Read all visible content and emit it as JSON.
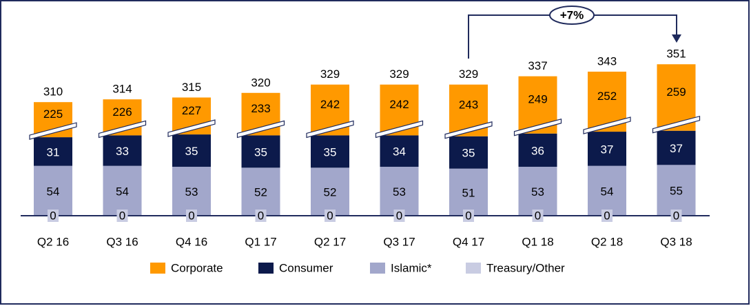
{
  "chart_data": {
    "type": "stacked_bar",
    "categories": [
      "Q2 16",
      "Q3 16",
      "Q4 16",
      "Q1 17",
      "Q2 17",
      "Q3 17",
      "Q4 17",
      "Q1 18",
      "Q2 18",
      "Q3 18"
    ],
    "series": [
      {
        "name": "Treasury/Other",
        "color": "#c9cce2",
        "values": [
          0,
          0,
          0,
          0,
          0,
          0,
          0,
          0,
          0,
          0
        ]
      },
      {
        "name": "Islamic*",
        "color": "#a2a7cb",
        "values": [
          54,
          54,
          53,
          52,
          52,
          53,
          51,
          53,
          54,
          55
        ]
      },
      {
        "name": "Consumer",
        "color": "#0c1a4b",
        "values": [
          31,
          33,
          35,
          35,
          35,
          34,
          35,
          36,
          37,
          37
        ]
      },
      {
        "name": "Corporate",
        "color": "#ff9900",
        "values": [
          225,
          226,
          227,
          233,
          242,
          242,
          243,
          249,
          252,
          259
        ]
      }
    ],
    "totals": [
      310,
      314,
      315,
      320,
      329,
      329,
      329,
      337,
      343,
      351
    ],
    "axis_break": 187,
    "annotation": "+7%",
    "legend": "bottom"
  }
}
